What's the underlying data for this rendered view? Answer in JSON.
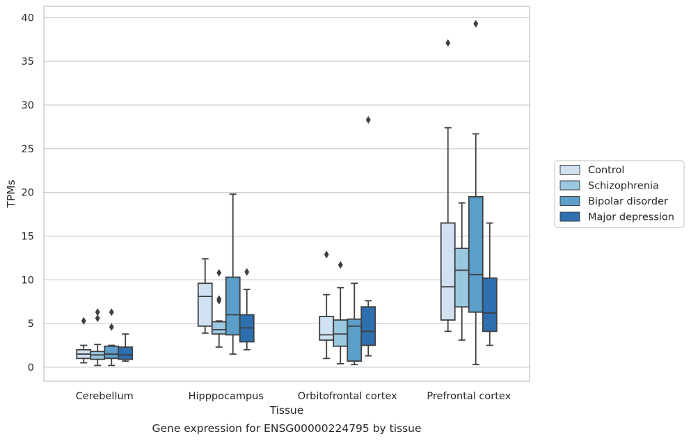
{
  "chart_data": {
    "type": "box",
    "xlabel": "Tissue",
    "ylabel": "TPMs",
    "caption": "Gene expression for ENSG00000224795 by tissue",
    "ylim": [
      -1.6,
      41.3
    ],
    "yticks": [
      0,
      5,
      10,
      15,
      20,
      25,
      30,
      35,
      40
    ],
    "categories": [
      "Cerebellum",
      "Hipppocampus",
      "Orbitofrontal cortex",
      "Prefrontal cortex"
    ],
    "grid": "horizontal",
    "legend_position": "right",
    "series": [
      {
        "name": "Control",
        "color": "#d0e1f2",
        "boxes": [
          {
            "whislo": 0.5,
            "q1": 1.0,
            "med": 1.5,
            "q3": 2.0,
            "whishi": 2.5,
            "fliers": [
              5.3
            ]
          },
          {
            "whislo": 3.9,
            "q1": 4.7,
            "med": 8.1,
            "q3": 9.6,
            "whishi": 12.4,
            "fliers": []
          },
          {
            "whislo": 1.0,
            "q1": 3.1,
            "med": 3.7,
            "q3": 5.8,
            "whishi": 8.3,
            "fliers": [
              12.9
            ]
          },
          {
            "whislo": 4.1,
            "q1": 5.4,
            "med": 9.2,
            "q3": 16.5,
            "whishi": 27.4,
            "fliers": [
              37.1
            ]
          }
        ]
      },
      {
        "name": "Schizophrenia",
        "color": "#9ac8e0",
        "boxes": [
          {
            "whislo": 0.2,
            "q1": 0.9,
            "med": 1.4,
            "q3": 1.8,
            "whishi": 2.6,
            "fliers": [
              5.6,
              6.3
            ]
          },
          {
            "whislo": 2.3,
            "q1": 3.8,
            "med": 4.3,
            "q3": 5.2,
            "whishi": 5.3,
            "fliers": [
              7.6,
              7.8,
              10.8
            ]
          },
          {
            "whislo": 0.4,
            "q1": 2.4,
            "med": 3.8,
            "q3": 5.4,
            "whishi": 9.1,
            "fliers": [
              11.7
            ]
          },
          {
            "whislo": 3.1,
            "q1": 6.9,
            "med": 11.1,
            "q3": 13.6,
            "whishi": 18.8,
            "fliers": []
          }
        ]
      },
      {
        "name": "Bipolar disorder",
        "color": "#5a9ec9",
        "boxes": [
          {
            "whislo": 0.2,
            "q1": 1.0,
            "med": 1.5,
            "q3": 2.4,
            "whishi": 2.5,
            "fliers": [
              4.6,
              6.3
            ]
          },
          {
            "whislo": 1.5,
            "q1": 3.7,
            "med": 6.0,
            "q3": 10.3,
            "whishi": 19.8,
            "fliers": []
          },
          {
            "whislo": 0.3,
            "q1": 0.7,
            "med": 4.7,
            "q3": 5.5,
            "whishi": 9.6,
            "fliers": []
          },
          {
            "whislo": 0.3,
            "q1": 6.3,
            "med": 10.6,
            "q3": 19.5,
            "whishi": 26.7,
            "fliers": [
              39.3
            ]
          }
        ]
      },
      {
        "name": "Major depression",
        "color": "#2e6fb0",
        "boxes": [
          {
            "whislo": 0.7,
            "q1": 0.9,
            "med": 1.4,
            "q3": 2.3,
            "whishi": 3.8,
            "fliers": []
          },
          {
            "whislo": 2.0,
            "q1": 2.9,
            "med": 4.5,
            "q3": 6.0,
            "whishi": 8.9,
            "fliers": [
              10.9
            ]
          },
          {
            "whislo": 1.3,
            "q1": 2.5,
            "med": 4.1,
            "q3": 6.9,
            "whishi": 7.6,
            "fliers": [
              28.3
            ]
          },
          {
            "whislo": 2.5,
            "q1": 4.1,
            "med": 6.2,
            "q3": 10.2,
            "whishi": 16.5,
            "fliers": []
          }
        ]
      }
    ]
  }
}
